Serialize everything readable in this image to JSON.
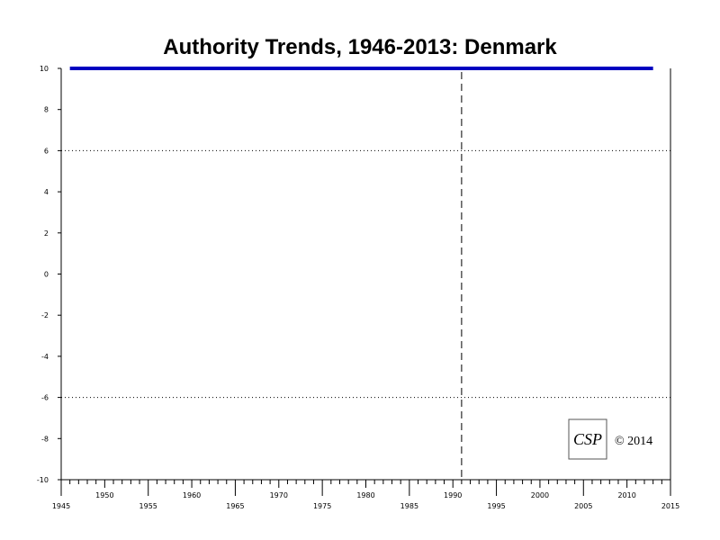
{
  "chart_data": {
    "type": "line",
    "title": "Authority Trends, 1946-2013: Denmark",
    "xlabel": "",
    "ylabel": "",
    "xlim": [
      1945,
      2015
    ],
    "ylim": [
      -10,
      10
    ],
    "x_ticks_major": [
      1945,
      1955,
      1965,
      1975,
      1985,
      1995,
      2005,
      2015
    ],
    "x_ticks_minor_labeled": [
      1950,
      1960,
      1970,
      1980,
      1990,
      2000,
      2010
    ],
    "y_ticks": [
      10,
      8,
      6,
      4,
      2,
      0,
      -2,
      -4,
      -6,
      -8,
      -10
    ],
    "reference_lines": {
      "horizontal_dotted": [
        6,
        -6
      ],
      "vertical_dashed": [
        1991
      ]
    },
    "series": [
      {
        "color": "#0000c0",
        "x": [
          1946,
          2013
        ],
        "y": [
          10,
          10
        ]
      }
    ],
    "grid": false
  },
  "watermark": {
    "logo_text": "CSP",
    "copyright": "© 2014"
  }
}
